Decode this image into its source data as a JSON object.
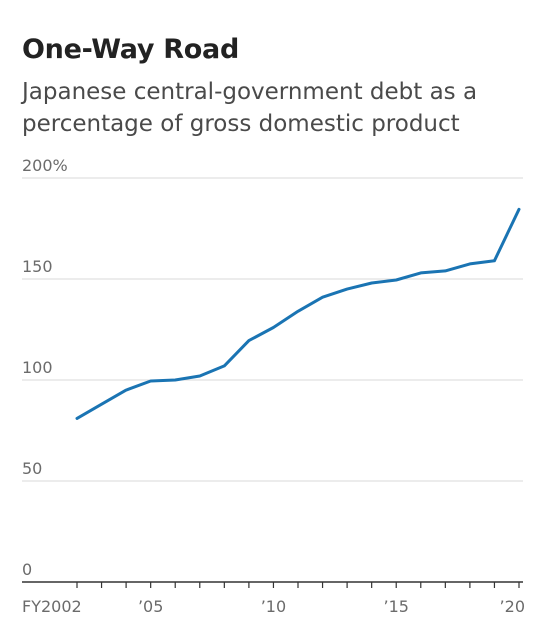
{
  "title": "One-Way Road",
  "subtitle": "Japanese central-government debt as a percentage of gross domestic product",
  "colors": {
    "line": "#1a74b3",
    "grid": "#d9d9d9",
    "axis": "#333333",
    "text": "#6b6b6b"
  },
  "chart_data": {
    "type": "line",
    "title": "One-Way Road",
    "subtitle": "Japanese central-government debt as a percentage of gross domestic product",
    "xlabel": "",
    "ylabel": "",
    "xlim": [
      2002,
      2020
    ],
    "ylim": [
      0,
      200
    ],
    "grid": true,
    "y_ticks": [
      {
        "value": 0,
        "label": "0"
      },
      {
        "value": 50,
        "label": "50"
      },
      {
        "value": 100,
        "label": "100"
      },
      {
        "value": 150,
        "label": "150"
      },
      {
        "value": 200,
        "label": "200%"
      }
    ],
    "x_ticks": [
      {
        "value": 2002,
        "label": "FY2002"
      },
      {
        "value": 2005,
        "label": "’05"
      },
      {
        "value": 2010,
        "label": "’10"
      },
      {
        "value": 2015,
        "label": "’15"
      },
      {
        "value": 2020,
        "label": "’20"
      }
    ],
    "series": [
      {
        "x": [
          2002,
          2003,
          2004,
          2005,
          2006,
          2007,
          2008,
          2009,
          2010,
          2011,
          2012,
          2013,
          2014,
          2015,
          2016,
          2017,
          2018,
          2019,
          2020
        ],
        "y": [
          81,
          88,
          95,
          99.5,
          100,
          102,
          107,
          119.5,
          126,
          134,
          141,
          145,
          148,
          149.5,
          153,
          154,
          157.5,
          159,
          184.5
        ]
      }
    ]
  }
}
